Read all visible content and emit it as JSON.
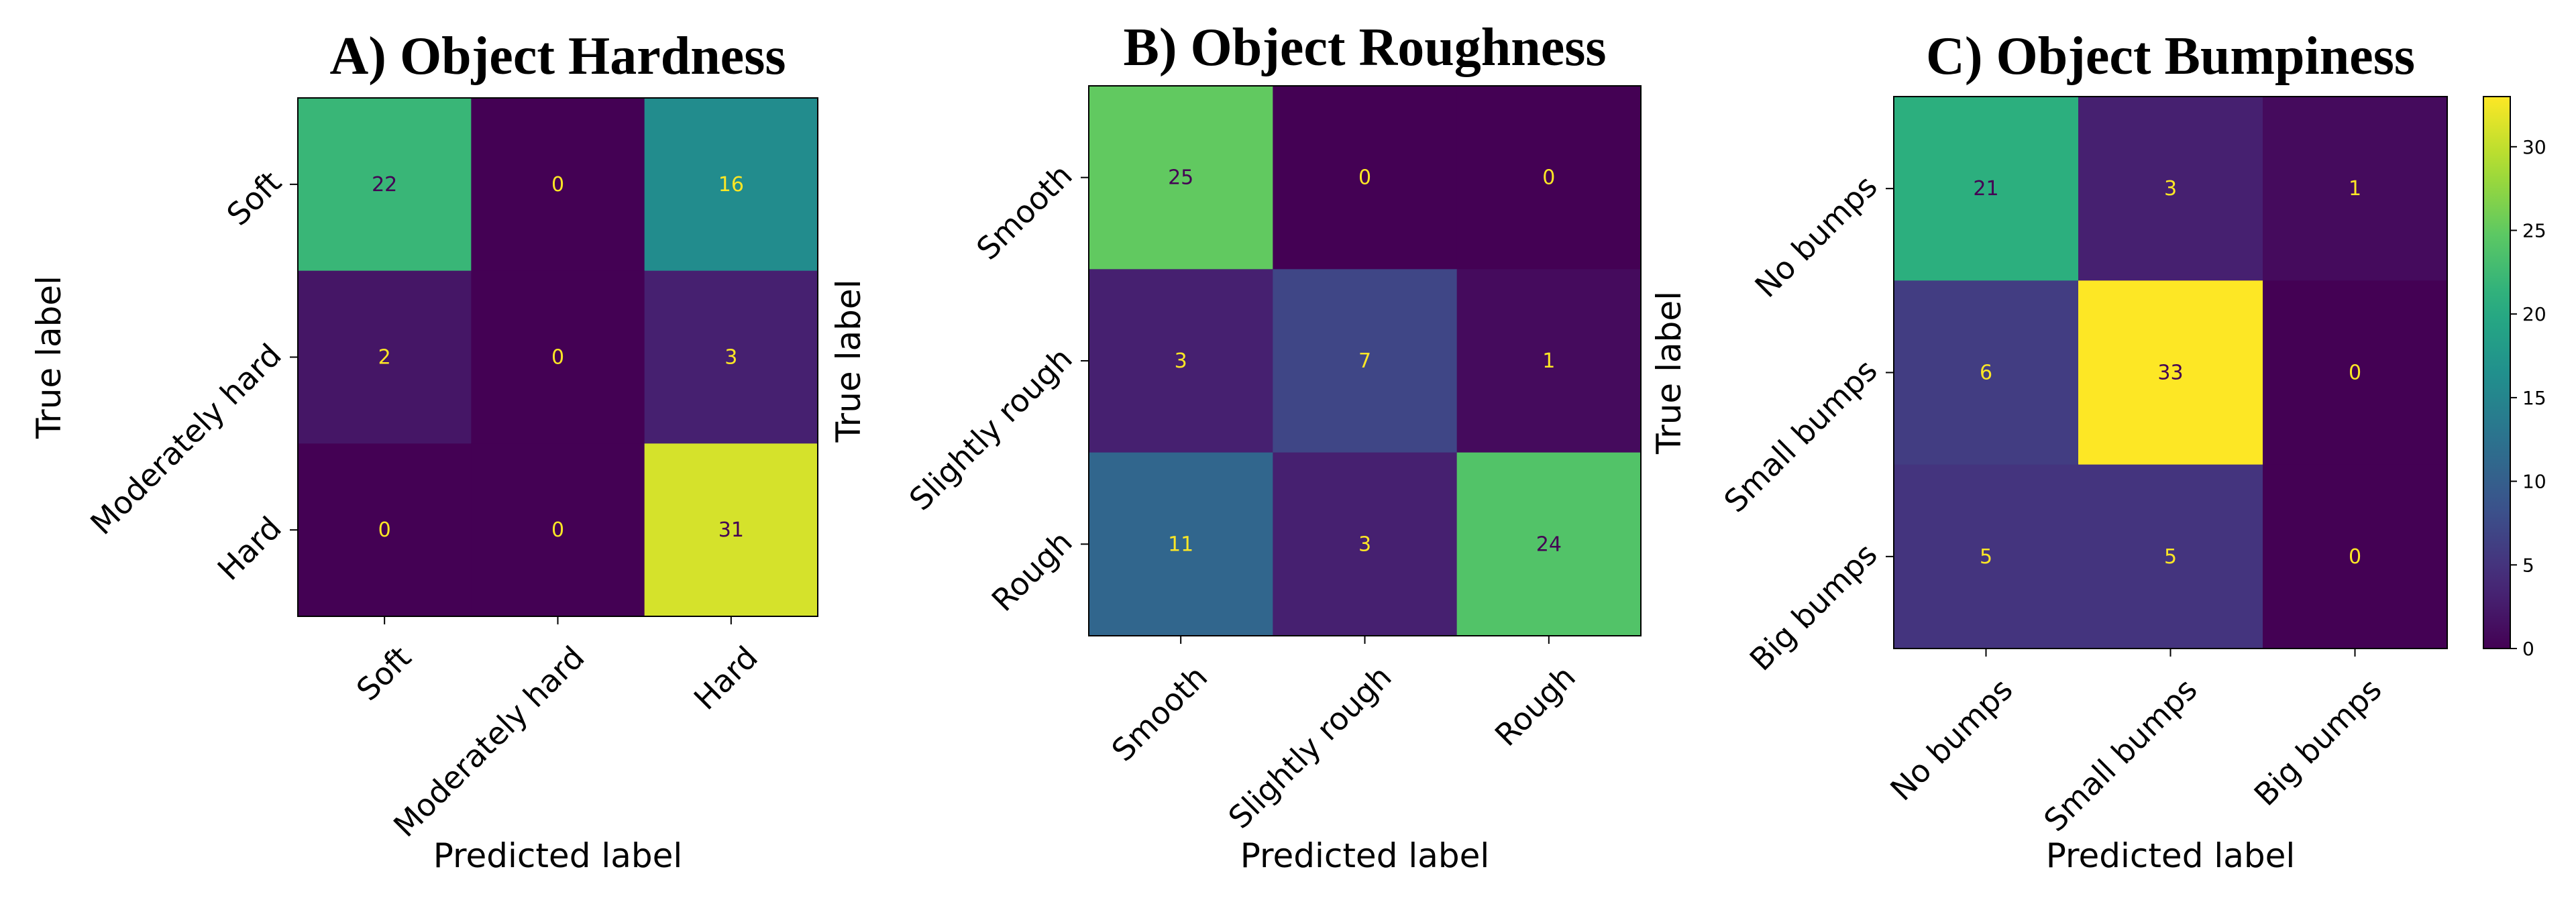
{
  "colormap": "viridis",
  "colorbar": {
    "vmin": 0,
    "vmax": 33,
    "ticks": [
      0,
      5,
      10,
      15,
      20,
      25,
      30
    ]
  },
  "chart_data": [
    {
      "type": "heatmap",
      "title": "A) Object Hardness",
      "xlabel": "Predicted label",
      "ylabel": "True label",
      "x_categories": [
        "Soft",
        "Moderately hard",
        "Hard"
      ],
      "y_categories": [
        "Soft",
        "Moderately hard",
        "Hard"
      ],
      "values": [
        [
          22,
          0,
          16
        ],
        [
          2,
          0,
          3
        ],
        [
          0,
          0,
          31
        ]
      ]
    },
    {
      "type": "heatmap",
      "title": "B) Object Roughness",
      "xlabel": "Predicted label",
      "ylabel": "True label",
      "x_categories": [
        "Smooth",
        "Slightly rough",
        "Rough"
      ],
      "y_categories": [
        "Smooth",
        "Slightly rough",
        "Rough"
      ],
      "values": [
        [
          25,
          0,
          0
        ],
        [
          3,
          7,
          1
        ],
        [
          11,
          3,
          24
        ]
      ]
    },
    {
      "type": "heatmap",
      "title": "C) Object Bumpiness",
      "xlabel": "Predicted label",
      "ylabel": "True label",
      "x_categories": [
        "No bumps",
        "Small bumps",
        "Big bumps"
      ],
      "y_categories": [
        "No bumps",
        "Small bumps",
        "Big bumps"
      ],
      "values": [
        [
          21,
          3,
          1
        ],
        [
          6,
          33,
          0
        ],
        [
          5,
          5,
          0
        ]
      ]
    }
  ]
}
